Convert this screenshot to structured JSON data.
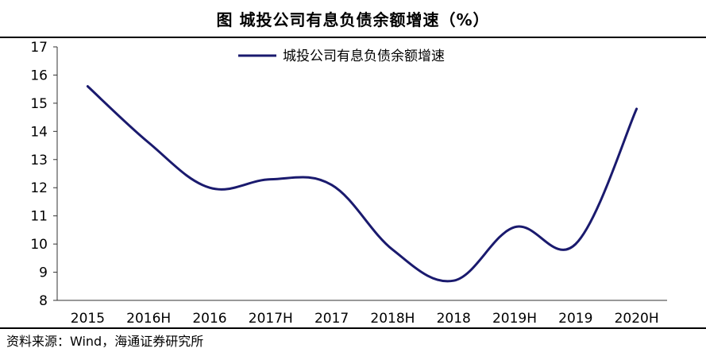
{
  "title": "图  城投公司有息负债余额增速（%）",
  "source": "资料来源：Wind，海通证券研究所",
  "chart_data": {
    "type": "line",
    "categories": [
      "2015",
      "2016H",
      "2016",
      "2017H",
      "2017",
      "2018H",
      "2018",
      "2019H",
      "2019",
      "2020H"
    ],
    "series": [
      {
        "name": "城投公司有息负债余额增速",
        "color": "#1a1a6e",
        "values": [
          15.6,
          13.6,
          12.0,
          12.3,
          12.1,
          9.8,
          8.7,
          10.6,
          10.0,
          14.8
        ]
      }
    ],
    "yticks": [
      8,
      9,
      10,
      11,
      12,
      13,
      14,
      15,
      16,
      17
    ],
    "ylim": [
      8,
      17
    ],
    "xlabel": "",
    "ylabel": "",
    "grid": false,
    "legend": "top-center"
  }
}
